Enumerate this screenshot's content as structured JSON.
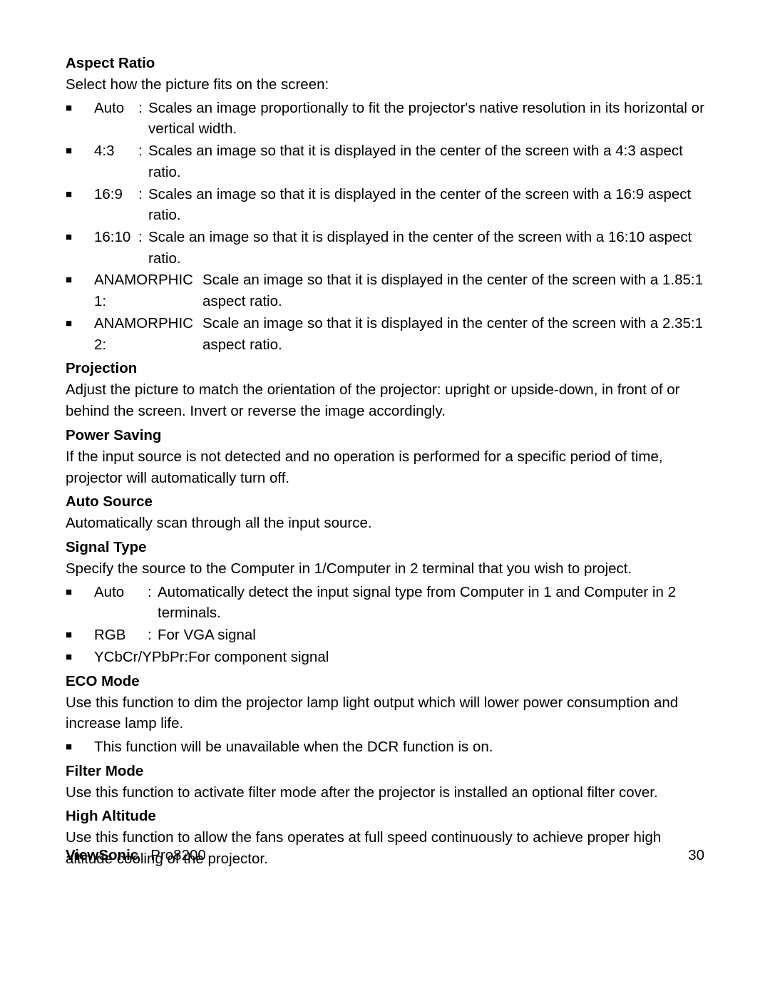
{
  "aspectRatio": {
    "title": "Aspect Ratio",
    "intro": "Select how the picture fits on the screen:",
    "items": [
      {
        "term": "Auto",
        "colon": ":",
        "desc": "Scales an image proportionally to fit the projector's native resolution in its horizontal or vertical width."
      },
      {
        "term": "4:3",
        "colon": ":",
        "desc": "Scales an image so that it is displayed in the center of the screen with a 4:3 aspect ratio."
      },
      {
        "term": "16:9",
        "colon": ":",
        "desc": "Scales an image so that it is displayed in the center of the screen with a 16:9 aspect ratio."
      },
      {
        "term": "16:10",
        "colon": ":",
        "desc": "Scale an image so that it is displayed in the center of the screen with a 16:10 aspect ratio."
      },
      {
        "term": "ANAMORPHIC 1:",
        "desc": "Scale an image so that it is displayed in the center of the screen with a 1.85:1 aspect ratio."
      },
      {
        "term": "ANAMORPHIC 2:",
        "desc": "Scale an image so that it is displayed in the center of the screen with a 2.35:1 aspect ratio."
      }
    ]
  },
  "projection": {
    "title": "Projection",
    "body": "Adjust the picture to match the orientation of the projector: upright or upside-down, in front of or behind the screen. Invert or reverse the image accordingly."
  },
  "powerSaving": {
    "title": "Power Saving",
    "body": "If the input source is not detected and no operation is performed for a specific period of time, projector will automatically turn off."
  },
  "autoSource": {
    "title": "Auto Source",
    "body": "Automatically scan through all the input source."
  },
  "signalType": {
    "title": "Signal Type",
    "intro": "Specify the source to the Computer in 1/Computer in 2 terminal that you wish to project.",
    "items": [
      {
        "term": "Auto",
        "colon": ":",
        "desc": "Automatically detect the input signal type from Computer in 1 and Computer in 2 terminals."
      },
      {
        "term": "RGB",
        "colon": ":",
        "desc": "For VGA signal"
      },
      {
        "term": "YCbCr/YPbPr:",
        "desc": "For component signal"
      }
    ]
  },
  "ecoMode": {
    "title": "ECO Mode",
    "body": "Use this function to dim the projector lamp light output which will lower power consumption and increase lamp life.",
    "note": "This function will be unavailable when the DCR function is on."
  },
  "filterMode": {
    "title": "Filter Mode",
    "body": "Use this function to activate filter mode after the projector is installed an optional filter cover."
  },
  "highAltitude": {
    "title": "High Altitude",
    "body": "Use this function to allow the fans operates at full speed continuously to achieve proper high altitude cooling of the projector."
  },
  "footer": {
    "brand": "ViewSonic",
    "model": "Pro8200",
    "page": "30"
  },
  "bullet": "■"
}
